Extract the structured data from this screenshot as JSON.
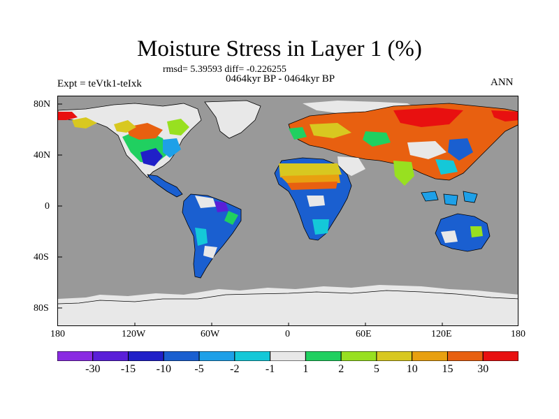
{
  "title": "Moisture Stress in Layer 1 (%)",
  "stats_line": "rmsd= 5.39593 diff= -0.226255",
  "period": "0464kyr BP - 0464kyr BP",
  "experiment": "Expt = teVtk1-teIxk",
  "season": "ANN",
  "colors": {
    "ocean": "#999999",
    "ice": "#e8e8e8",
    "coastline": "#000000"
  },
  "lat_ticks": [
    "80N",
    "40N",
    "0",
    "40S",
    "80S"
  ],
  "lon_ticks": [
    "180",
    "120W",
    "60W",
    "0",
    "60E",
    "120E",
    "180"
  ],
  "colorbar": {
    "colors": [
      "#8a2be2",
      "#5a1fd8",
      "#2020c8",
      "#1a5fd0",
      "#1ea0e8",
      "#14c8d8",
      "#e8e8e8",
      "#20d060",
      "#98e020",
      "#d8c820",
      "#e8a010",
      "#e86010",
      "#e81010"
    ],
    "labels": [
      "-30",
      "-15",
      "-10",
      "-5",
      "-2",
      "-1",
      "1",
      "2",
      "5",
      "10",
      "15",
      "30"
    ]
  }
}
